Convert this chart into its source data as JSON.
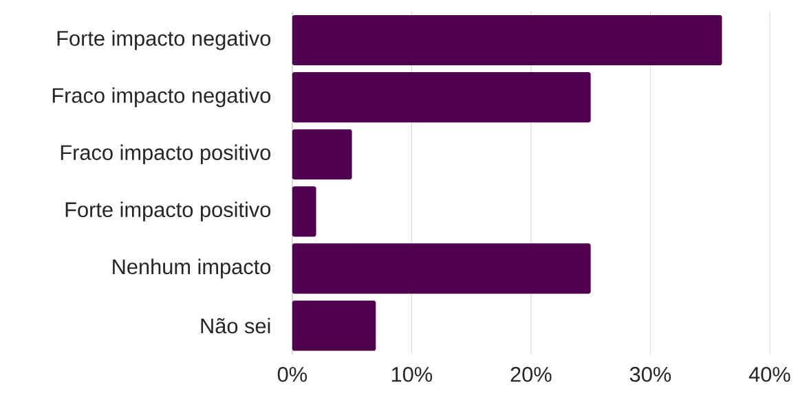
{
  "chart_data": {
    "type": "bar",
    "orientation": "horizontal",
    "categories": [
      "Forte impacto negativo",
      "Fraco impacto negativo",
      "Fraco impacto positivo",
      "Forte impacto positivo",
      "Nenhum impacto",
      "Não sei"
    ],
    "values": [
      36,
      25,
      5,
      2,
      25,
      7
    ],
    "color": "#4f0050",
    "xlim": [
      0,
      40
    ],
    "xticks": [
      {
        "value": 0,
        "label": "0%"
      },
      {
        "value": 10,
        "label": "10%"
      },
      {
        "value": 20,
        "label": "20%"
      },
      {
        "value": 30,
        "label": "30%"
      },
      {
        "value": 40,
        "label": "40%"
      }
    ],
    "grid": "x"
  }
}
